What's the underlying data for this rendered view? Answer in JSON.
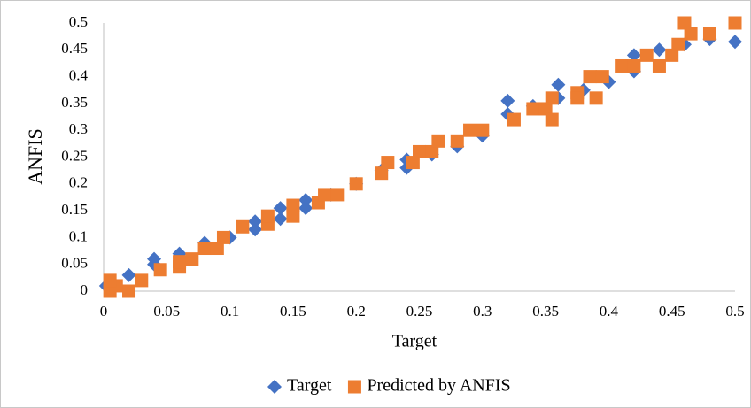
{
  "chart_data": {
    "type": "scatter",
    "x_label": "Target",
    "y_label": "ANFIS",
    "xlim": [
      0,
      0.5
    ],
    "ylim": [
      0,
      0.5
    ],
    "xticks": [
      0,
      0.05,
      0.1,
      0.15,
      0.2,
      0.25,
      0.3,
      0.35,
      0.4,
      0.45,
      0.5
    ],
    "yticks": [
      0,
      0.05,
      0.1,
      0.15,
      0.2,
      0.25,
      0.3,
      0.35,
      0.4,
      0.45,
      0.5
    ],
    "grid": false,
    "legend": "bottom",
    "series": [
      {
        "name": "Target",
        "color": "#4472c4",
        "marker": "diamond",
        "x": [
          0.002,
          0.02,
          0.04,
          0.04,
          0.06,
          0.08,
          0.1,
          0.12,
          0.12,
          0.14,
          0.14,
          0.16,
          0.16,
          0.18,
          0.2,
          0.22,
          0.24,
          0.24,
          0.26,
          0.28,
          0.3,
          0.32,
          0.32,
          0.34,
          0.36,
          0.36,
          0.38,
          0.4,
          0.42,
          0.42,
          0.44,
          0.46,
          0.48,
          0.5
        ],
        "values": [
          0.01,
          0.03,
          0.06,
          0.05,
          0.07,
          0.09,
          0.1,
          0.13,
          0.115,
          0.155,
          0.135,
          0.17,
          0.155,
          0.18,
          0.2,
          0.225,
          0.245,
          0.23,
          0.255,
          0.27,
          0.29,
          0.355,
          0.33,
          0.345,
          0.385,
          0.36,
          0.375,
          0.39,
          0.41,
          0.44,
          0.45,
          0.46,
          0.47,
          0.465
        ]
      },
      {
        "name": "Predicted by ANFIS",
        "color": "#ed7d31",
        "marker": "square",
        "x": [
          0.005,
          0.01,
          0.005,
          0.02,
          0.03,
          0.045,
          0.06,
          0.06,
          0.07,
          0.08,
          0.09,
          0.095,
          0.11,
          0.13,
          0.13,
          0.15,
          0.15,
          0.17,
          0.175,
          0.185,
          0.2,
          0.22,
          0.225,
          0.245,
          0.25,
          0.26,
          0.265,
          0.28,
          0.29,
          0.3,
          0.325,
          0.34,
          0.35,
          0.355,
          0.355,
          0.375,
          0.375,
          0.385,
          0.39,
          0.395,
          0.41,
          0.42,
          0.43,
          0.44,
          0.45,
          0.455,
          0.46,
          0.465,
          0.48,
          0.5
        ],
        "values": [
          0,
          0.01,
          0.02,
          0,
          0.02,
          0.04,
          0.045,
          0.055,
          0.06,
          0.08,
          0.08,
          0.1,
          0.12,
          0.125,
          0.14,
          0.14,
          0.16,
          0.165,
          0.18,
          0.18,
          0.2,
          0.22,
          0.24,
          0.24,
          0.26,
          0.26,
          0.28,
          0.28,
          0.3,
          0.3,
          0.32,
          0.34,
          0.34,
          0.32,
          0.36,
          0.37,
          0.36,
          0.4,
          0.36,
          0.4,
          0.42,
          0.42,
          0.44,
          0.42,
          0.44,
          0.46,
          0.5,
          0.48,
          0.48,
          0.5
        ]
      }
    ]
  }
}
